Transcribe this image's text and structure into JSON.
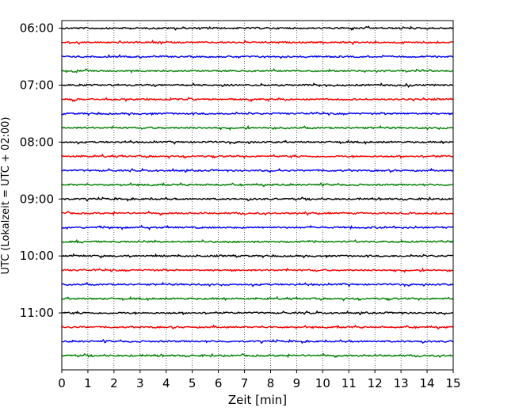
{
  "chart_data": {
    "type": "line",
    "title": "",
    "xlabel": "Zeit  [min]",
    "ylabel": "UTC (Lokalzeit = UTC + 02:00)",
    "xlim": [
      0,
      15
    ],
    "x_ticks": [
      0,
      1,
      2,
      3,
      4,
      5,
      6,
      7,
      8,
      9,
      10,
      11,
      12,
      13,
      14,
      15
    ],
    "ylim_minutes_from_top": [
      -8,
      360
    ],
    "y_tick_labels": [
      "06:00",
      "07:00",
      "08:00",
      "09:00",
      "10:00",
      "11:00"
    ],
    "y_tick_minutes": [
      0,
      60,
      120,
      180,
      240,
      300
    ],
    "trace_interval_min": 15,
    "trace_count": 24,
    "trace_colors": [
      "#000000",
      "#ff0000",
      "#0000ff",
      "#008000"
    ],
    "vertical_grid": "dotted",
    "legend": "none"
  }
}
